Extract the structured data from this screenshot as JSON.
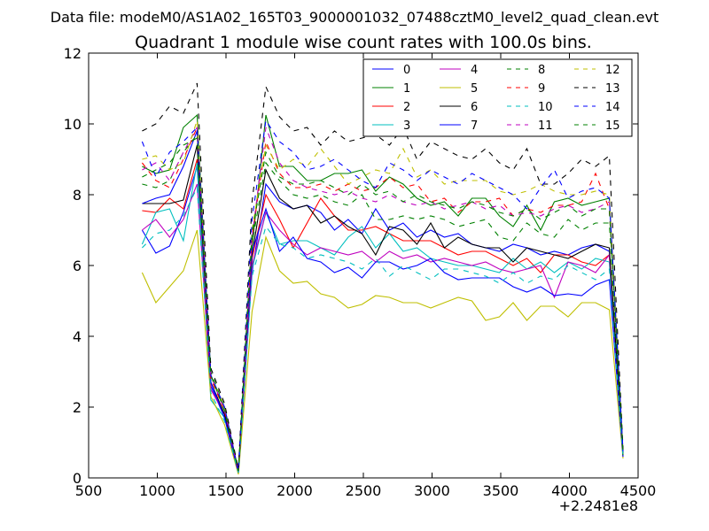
{
  "chart_data": {
    "type": "line",
    "suptitle": "Data file: modeM0/AS1A02_165T03_9000001032_07488cztM0_level2_quad_clean.evt",
    "title": "Quadrant 1 module wise count rates with 100.0s bins.",
    "xlabel": "",
    "ylabel": "",
    "x_offset_label": "+2.2481e8",
    "xlim": [
      500,
      4500
    ],
    "ylim": [
      0,
      12
    ],
    "xticks": [
      500,
      1000,
      1500,
      2000,
      2500,
      3000,
      3500,
      4000,
      4500
    ],
    "yticks": [
      0,
      2,
      4,
      6,
      8,
      10,
      12
    ],
    "grid": false,
    "legend_position": "top-right",
    "x": [
      890,
      990,
      1090,
      1190,
      1290,
      1390,
      1490,
      1590,
      1690,
      1790,
      1890,
      1990,
      2090,
      2190,
      2290,
      2390,
      2490,
      2590,
      2690,
      2790,
      2890,
      2990,
      3090,
      3190,
      3290,
      3390,
      3490,
      3590,
      3690,
      3790,
      3890,
      3990,
      4090,
      4190,
      4290,
      4390
    ],
    "series": [
      {
        "name": "0",
        "color": "#0000ff",
        "dash": "solid",
        "values": [
          7.0,
          6.35,
          6.55,
          7.5,
          8.8,
          2.6,
          1.7,
          0.15,
          5.8,
          8.3,
          7.8,
          7.6,
          7.7,
          7.5,
          7.0,
          7.3,
          6.9,
          7.6,
          7.0,
          7.2,
          6.8,
          7.0,
          6.8,
          6.9,
          6.6,
          6.5,
          6.4,
          6.6,
          6.5,
          6.3,
          6.4,
          6.3,
          6.5,
          6.6,
          6.4,
          0.6
        ]
      },
      {
        "name": "1",
        "color": "#008000",
        "dash": "solid",
        "values": [
          8.8,
          8.6,
          8.7,
          9.9,
          10.25,
          2.9,
          1.9,
          0.2,
          6.5,
          10.25,
          8.8,
          8.8,
          8.4,
          8.4,
          8.6,
          8.6,
          8.7,
          8.1,
          8.5,
          8.3,
          7.9,
          7.7,
          7.8,
          7.4,
          7.9,
          7.9,
          7.4,
          7.1,
          7.7,
          7.0,
          7.8,
          7.9,
          7.7,
          7.8,
          7.9,
          0.7
        ]
      },
      {
        "name": "2",
        "color": "#ff0000",
        "dash": "solid",
        "values": [
          7.55,
          7.5,
          7.9,
          7.6,
          9.0,
          2.5,
          1.8,
          0.2,
          6.2,
          8.0,
          7.3,
          6.5,
          7.2,
          7.9,
          7.4,
          7.0,
          7.0,
          7.1,
          6.9,
          6.7,
          6.7,
          6.7,
          6.5,
          6.3,
          6.4,
          6.4,
          6.2,
          6.0,
          6.2,
          5.8,
          6.3,
          6.3,
          6.1,
          6.0,
          6.3,
          0.65
        ]
      },
      {
        "name": "3",
        "color": "#00bfbf",
        "dash": "solid",
        "values": [
          6.6,
          7.5,
          7.6,
          6.7,
          8.9,
          2.2,
          1.7,
          0.15,
          5.9,
          7.5,
          6.6,
          6.7,
          6.7,
          6.5,
          6.3,
          6.8,
          7.1,
          6.5,
          6.9,
          6.4,
          6.5,
          6.2,
          6.1,
          6.0,
          6.0,
          5.9,
          5.8,
          6.2,
          5.9,
          6.1,
          5.8,
          6.1,
          5.9,
          6.2,
          6.1,
          0.6
        ]
      },
      {
        "name": "4",
        "color": "#bf00bf",
        "dash": "solid",
        "values": [
          7.0,
          7.3,
          6.8,
          7.3,
          8.3,
          2.5,
          1.8,
          0.15,
          6.0,
          7.5,
          7.0,
          6.6,
          6.3,
          6.5,
          6.4,
          6.3,
          6.4,
          6.1,
          6.4,
          6.2,
          6.3,
          6.1,
          6.2,
          6.1,
          6.0,
          6.1,
          5.9,
          5.8,
          5.9,
          6.0,
          5.1,
          6.1,
          6.0,
          5.8,
          6.3,
          0.6
        ]
      },
      {
        "name": "5",
        "color": "#bfbf00",
        "dash": "solid",
        "values": [
          5.8,
          4.95,
          5.4,
          5.85,
          7.0,
          2.3,
          1.5,
          0.1,
          4.7,
          6.8,
          5.85,
          5.5,
          5.55,
          5.2,
          5.1,
          4.8,
          4.9,
          5.15,
          5.1,
          4.95,
          4.95,
          4.8,
          4.95,
          5.1,
          5.0,
          4.45,
          4.55,
          4.95,
          4.45,
          4.85,
          4.85,
          4.55,
          4.95,
          4.95,
          4.75,
          0.55
        ]
      },
      {
        "name": "6",
        "color": "#000000",
        "dash": "solid",
        "values": [
          7.75,
          7.75,
          7.75,
          7.85,
          9.4,
          2.7,
          1.8,
          0.2,
          6.3,
          8.7,
          7.9,
          7.6,
          7.7,
          7.2,
          7.4,
          7.1,
          6.9,
          6.3,
          7.1,
          7.0,
          6.6,
          7.2,
          6.5,
          6.8,
          6.6,
          6.5,
          6.5,
          6.1,
          6.5,
          6.4,
          6.3,
          6.2,
          6.4,
          6.6,
          6.5,
          0.7
        ]
      },
      {
        "name": "7",
        "color": "#0000ff",
        "dash": "solid",
        "values": [
          7.75,
          7.9,
          8.0,
          8.8,
          9.8,
          2.7,
          1.7,
          0.15,
          6.4,
          7.6,
          6.4,
          6.8,
          6.2,
          6.1,
          5.8,
          5.95,
          5.65,
          6.1,
          6.1,
          5.9,
          6.0,
          6.2,
          5.8,
          5.6,
          5.65,
          5.65,
          5.65,
          5.4,
          5.25,
          5.4,
          5.15,
          5.2,
          5.15,
          5.45,
          5.6,
          0.6
        ]
      },
      {
        "name": "8",
        "color": "#008000",
        "dash": "dashed",
        "values": [
          8.3,
          8.2,
          8.4,
          9.2,
          9.7,
          3.0,
          2.0,
          0.2,
          6.6,
          8.9,
          8.4,
          8.0,
          7.9,
          8.0,
          7.8,
          7.7,
          8.0,
          7.3,
          7.3,
          7.4,
          7.3,
          7.4,
          7.3,
          7.1,
          7.2,
          7.3,
          6.8,
          6.7,
          7.2,
          6.9,
          6.8,
          7.3,
          7.0,
          7.2,
          7.2,
          0.65
        ]
      },
      {
        "name": "9",
        "color": "#ff0000",
        "dash": "dashed",
        "values": [
          8.9,
          8.4,
          8.2,
          9.0,
          9.9,
          2.8,
          1.9,
          0.2,
          6.8,
          9.5,
          8.6,
          8.2,
          8.2,
          8.3,
          8.1,
          8.3,
          8.1,
          8.2,
          8.5,
          8.2,
          8.3,
          7.8,
          7.9,
          7.5,
          7.8,
          7.8,
          7.9,
          7.4,
          7.6,
          7.5,
          7.7,
          7.7,
          7.8,
          8.6,
          7.6,
          0.7
        ]
      },
      {
        "name": "10",
        "color": "#00bfbf",
        "dash": "dashed",
        "values": [
          6.5,
          6.9,
          7.0,
          7.4,
          8.2,
          2.4,
          1.6,
          0.15,
          5.7,
          7.1,
          6.6,
          6.5,
          6.2,
          6.3,
          6.2,
          6.1,
          5.9,
          6.2,
          5.7,
          6.0,
          5.8,
          5.6,
          5.9,
          5.9,
          5.8,
          5.7,
          5.5,
          5.8,
          5.5,
          5.7,
          5.6,
          6.0,
          5.8,
          5.6,
          5.9,
          0.6
        ]
      },
      {
        "name": "11",
        "color": "#bf00bf",
        "dash": "dashed",
        "values": [
          8.7,
          8.9,
          8.4,
          9.2,
          9.9,
          2.9,
          1.9,
          0.2,
          6.8,
          9.9,
          8.9,
          8.4,
          8.2,
          8.1,
          8.0,
          8.1,
          7.9,
          7.8,
          8.0,
          7.8,
          7.7,
          7.8,
          7.6,
          7.7,
          7.8,
          7.6,
          7.7,
          7.4,
          7.5,
          7.4,
          7.6,
          7.7,
          7.5,
          7.6,
          7.8,
          0.7
        ]
      },
      {
        "name": "12",
        "color": "#bfbf00",
        "dash": "dashed",
        "values": [
          9.0,
          9.1,
          8.7,
          8.9,
          10.1,
          2.9,
          2.0,
          0.2,
          7.0,
          9.4,
          8.7,
          9.0,
          8.8,
          9.3,
          8.8,
          8.3,
          8.5,
          8.7,
          8.6,
          9.3,
          8.5,
          8.7,
          8.3,
          8.4,
          8.4,
          8.4,
          8.1,
          8.0,
          8.1,
          8.3,
          8.1,
          8.0,
          8.0,
          8.1,
          8.0,
          0.75
        ]
      },
      {
        "name": "13",
        "color": "#000000",
        "dash": "dashed",
        "values": [
          9.8,
          10.0,
          10.5,
          10.3,
          11.15,
          3.1,
          2.1,
          0.25,
          7.8,
          11.05,
          10.2,
          9.8,
          9.9,
          9.4,
          9.8,
          9.5,
          9.6,
          9.7,
          9.4,
          9.9,
          9.0,
          9.5,
          9.3,
          9.1,
          9.0,
          9.3,
          8.9,
          8.7,
          9.3,
          8.3,
          8.3,
          8.6,
          9.0,
          8.8,
          9.1,
          0.8
        ]
      },
      {
        "name": "14",
        "color": "#0000ff",
        "dash": "dashed",
        "values": [
          9.5,
          8.5,
          9.2,
          9.5,
          9.9,
          2.9,
          2.0,
          0.2,
          7.3,
          10.1,
          9.5,
          9.2,
          8.7,
          8.8,
          9.0,
          8.7,
          8.4,
          8.2,
          8.9,
          8.7,
          8.4,
          8.7,
          8.5,
          8.3,
          8.6,
          8.4,
          8.2,
          8.0,
          7.6,
          8.2,
          8.7,
          7.9,
          8.1,
          8.2,
          7.9,
          0.75
        ]
      },
      {
        "name": "15",
        "color": "#008000",
        "dash": "dashed",
        "values": [
          8.5,
          8.7,
          8.9,
          9.4,
          9.6,
          2.9,
          1.9,
          0.2,
          6.9,
          9.2,
          8.5,
          8.3,
          8.3,
          8.4,
          8.2,
          8.0,
          8.3,
          8.0,
          8.1,
          7.8,
          8.0,
          7.8,
          7.7,
          7.6,
          7.8,
          7.7,
          7.5,
          7.4,
          7.6,
          7.3,
          7.5,
          7.7,
          7.4,
          7.6,
          7.6,
          0.7
        ]
      }
    ]
  }
}
